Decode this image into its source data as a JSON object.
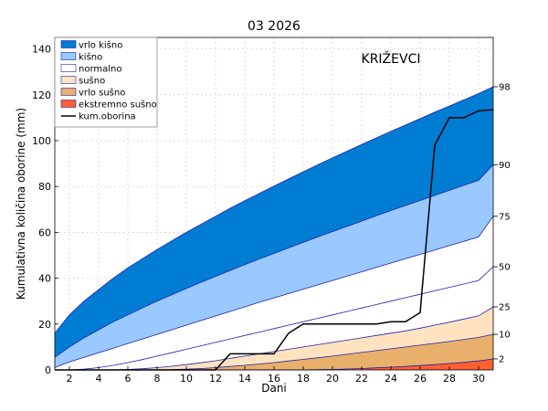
{
  "chart_data": {
    "type": "area",
    "title": "03 2026",
    "station": "KRIŽEVCI",
    "xlabel": "Dani",
    "ylabel": "Kumulativna količina oborine (mm)",
    "xlim": [
      1,
      31
    ],
    "ylim": [
      0,
      145
    ],
    "x_ticks": [
      2,
      4,
      6,
      8,
      10,
      12,
      14,
      16,
      18,
      20,
      22,
      24,
      26,
      28,
      30
    ],
    "y_ticks": [
      0,
      20,
      40,
      60,
      80,
      100,
      120,
      140
    ],
    "grid": true,
    "legend_position": "top-left",
    "percentile_labels": [
      "98",
      "90",
      "75",
      "50",
      "25",
      "10",
      "2"
    ],
    "x": [
      1,
      2,
      3,
      4,
      5,
      6,
      7,
      8,
      9,
      10,
      11,
      12,
      13,
      14,
      15,
      16,
      17,
      18,
      19,
      20,
      21,
      22,
      23,
      24,
      25,
      26,
      27,
      28,
      29,
      30,
      31
    ],
    "series": [
      {
        "name": "kum.oborina",
        "color": "#000000",
        "values": [
          0,
          0,
          0,
          0,
          0,
          0,
          0,
          0,
          0,
          0,
          0,
          0,
          7,
          7,
          7,
          7,
          16,
          20,
          20,
          20,
          20,
          20,
          20,
          21,
          21,
          25,
          98,
          110,
          110,
          113,
          113.5
        ]
      }
    ],
    "bands": [
      {
        "name": "vrlo kišno",
        "color": "#007dd2"
      },
      {
        "name": "kišno",
        "color": "#99c9ff"
      },
      {
        "name": "normalno",
        "color": "#ffffff"
      },
      {
        "name": "sušno",
        "color": "#ffe3c0"
      },
      {
        "name": "vrlo sušno",
        "color": "#e8b06a"
      },
      {
        "name": "ekstremno sušno",
        "color": "#ff6030"
      }
    ],
    "percentiles": {
      "p98": [
        16,
        24,
        30,
        35,
        40,
        44.5,
        48.5,
        52.5,
        56.3,
        60,
        63.5,
        67,
        70.5,
        73.8,
        77,
        80.2,
        83.3,
        86.4,
        89.5,
        92.5,
        95.4,
        98.3,
        101.2,
        104,
        106.8,
        109.6,
        112.4,
        115.1,
        117.8,
        120.5,
        123.5
      ],
      "p90": [
        5.5,
        10,
        14,
        17.5,
        21,
        24,
        27,
        30,
        32.8,
        35.5,
        38.2,
        40.8,
        43.4,
        45.9,
        48.4,
        50.8,
        53.2,
        55.6,
        58,
        60.3,
        62.6,
        64.9,
        67.2,
        69.5,
        71.7,
        73.9,
        76.1,
        78.3,
        80.5,
        82.7,
        89.5
      ],
      "p75": [
        1,
        3.5,
        5.5,
        7.5,
        9.5,
        11.5,
        13.5,
        15.5,
        17.5,
        19.5,
        21.5,
        23.5,
        25.5,
        27.5,
        29.5,
        31.4,
        33.3,
        35.2,
        37.1,
        39,
        40.9,
        42.8,
        44.7,
        46.6,
        48.5,
        50.4,
        52.3,
        54.2,
        56.1,
        58,
        67
      ],
      "p50": [
        0,
        0,
        0.3,
        1,
        2,
        3.2,
        4.5,
        6,
        7.5,
        9,
        10.5,
        12,
        13.5,
        15,
        16.5,
        18,
        19.5,
        21,
        22.5,
        24,
        25.5,
        27,
        28.5,
        30,
        31.5,
        33,
        34.5,
        36,
        37.5,
        39,
        45
      ],
      "p25": [
        0,
        0,
        0,
        0,
        0,
        0.2,
        0.5,
        1,
        1.6,
        2.3,
        3.1,
        4,
        5,
        6,
        7,
        8,
        9,
        10,
        11,
        12,
        13,
        14,
        15,
        16,
        17,
        18.2,
        19.5,
        20.8,
        22.2,
        23.6,
        27.5
      ],
      "p10": [
        0,
        0,
        0,
        0,
        0,
        0,
        0,
        0,
        0.1,
        0.3,
        0.6,
        1,
        1.5,
        2,
        2.6,
        3.2,
        3.9,
        4.6,
        5.3,
        6,
        6.8,
        7.6,
        8.4,
        9.2,
        10,
        10.8,
        11.6,
        12.4,
        13.3,
        14.2,
        15.5
      ],
      "p2": [
        0,
        0,
        0,
        0,
        0,
        0,
        0,
        0,
        0,
        0,
        0,
        0,
        0,
        0,
        0,
        0,
        0,
        0,
        0.1,
        0.2,
        0.4,
        0.6,
        0.9,
        1.2,
        1.5,
        1.9,
        2.3,
        2.8,
        3.3,
        3.9,
        4.8
      ]
    }
  }
}
